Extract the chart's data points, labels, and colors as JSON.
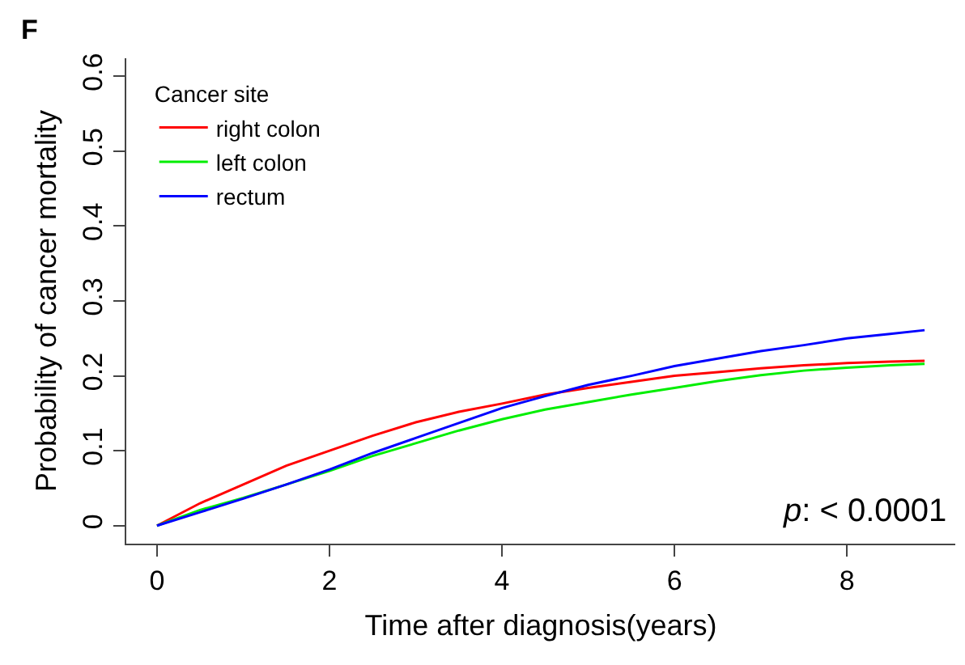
{
  "chart_data": {
    "type": "line",
    "xlabel": "Time after diagnosis(years)",
    "ylabel": "Probability of cancer mortality",
    "legend_title": "Cancer site",
    "legend": "top left",
    "grid": false,
    "marker": "none",
    "line_style": "solid",
    "x": [
      0,
      0.5,
      1,
      1.5,
      2,
      2.5,
      3,
      3.5,
      4,
      4.5,
      5,
      5.5,
      6,
      6.5,
      7,
      7.5,
      8,
      8.5,
      8.9
    ],
    "series": [
      {
        "name": "right colon",
        "color": "#ff0000",
        "values": [
          0,
          0.03,
          0.055,
          0.08,
          0.1,
          0.12,
          0.138,
          0.152,
          0.163,
          0.175,
          0.184,
          0.192,
          0.2,
          0.205,
          0.21,
          0.214,
          0.217,
          0.219,
          0.22
        ]
      },
      {
        "name": "left colon",
        "color": "#00ee00",
        "values": [
          0,
          0.021,
          0.037,
          0.055,
          0.073,
          0.093,
          0.11,
          0.127,
          0.142,
          0.155,
          0.165,
          0.175,
          0.184,
          0.193,
          0.201,
          0.207,
          0.211,
          0.214,
          0.216
        ]
      },
      {
        "name": "rectum",
        "color": "#0000ff",
        "values": [
          0,
          0.018,
          0.036,
          0.055,
          0.075,
          0.097,
          0.117,
          0.137,
          0.157,
          0.173,
          0.188,
          0.2,
          0.213,
          0.223,
          0.233,
          0.241,
          0.25,
          0.256,
          0.261
        ]
      }
    ],
    "xlim": [
      -0.356,
      9.256
    ],
    "xticks": [
      0,
      2,
      4,
      6,
      8
    ],
    "ylim": [
      -0.024,
      0.624
    ],
    "yticks": [
      0,
      0.1,
      0.2,
      0.3,
      0.4,
      0.5,
      0.6
    ],
    "annotations": [
      "F",
      "p: < 0.0001"
    ]
  }
}
